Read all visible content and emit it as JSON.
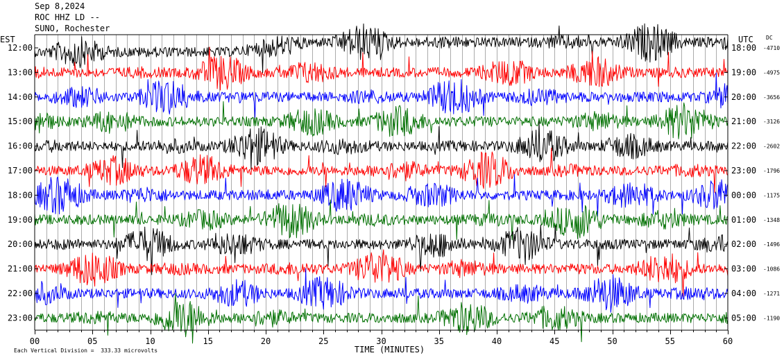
{
  "header": {
    "date": "Sep 8,2024",
    "station": "ROC HHZ LD --",
    "location": "SUNO, Rochester"
  },
  "left_tz": "EST",
  "right_tz": "UTC",
  "dc_label": "DC",
  "footer_note": "Each Vertical Division =  333.33 microvolts",
  "chart_data": {
    "type": "line",
    "xlabel": "TIME (MINUTES)",
    "xlim": [
      0,
      60
    ],
    "x_ticks": [
      "00",
      "05",
      "10",
      "15",
      "20",
      "25",
      "30",
      "35",
      "40",
      "45",
      "50",
      "55",
      "60"
    ],
    "x_tick_values": [
      0,
      5,
      10,
      15,
      20,
      25,
      30,
      35,
      40,
      45,
      50,
      55,
      60
    ],
    "rows": [
      {
        "left": "12:00",
        "right": "18:00",
        "dc": "-4710",
        "color": "#000000"
      },
      {
        "left": "13:00",
        "right": "19:00",
        "dc": "-4975",
        "color": "#ff0000"
      },
      {
        "left": "14:00",
        "right": "20:00",
        "dc": "-3656",
        "color": "#0000ff"
      },
      {
        "left": "15:00",
        "right": "21:00",
        "dc": "-3126",
        "color": "#007000"
      },
      {
        "left": "16:00",
        "right": "22:00",
        "dc": "-2602",
        "color": "#000000"
      },
      {
        "left": "17:00",
        "right": "23:00",
        "dc": "-1796",
        "color": "#ff0000"
      },
      {
        "left": "18:00",
        "right": "00:00",
        "dc": "-1175",
        "color": "#0000ff"
      },
      {
        "left": "19:00",
        "right": "01:00",
        "dc": "-1348",
        "color": "#007000"
      },
      {
        "left": "20:00",
        "right": "02:00",
        "dc": "-1496",
        "color": "#000000"
      },
      {
        "left": "21:00",
        "right": "03:00",
        "dc": "-1086",
        "color": "#ff0000"
      },
      {
        "left": "22:00",
        "right": "04:00",
        "dc": "-1271",
        "color": "#0000ff"
      },
      {
        "left": "23:00",
        "right": "05:00",
        "dc": "-1190",
        "color": "#007000"
      }
    ]
  }
}
